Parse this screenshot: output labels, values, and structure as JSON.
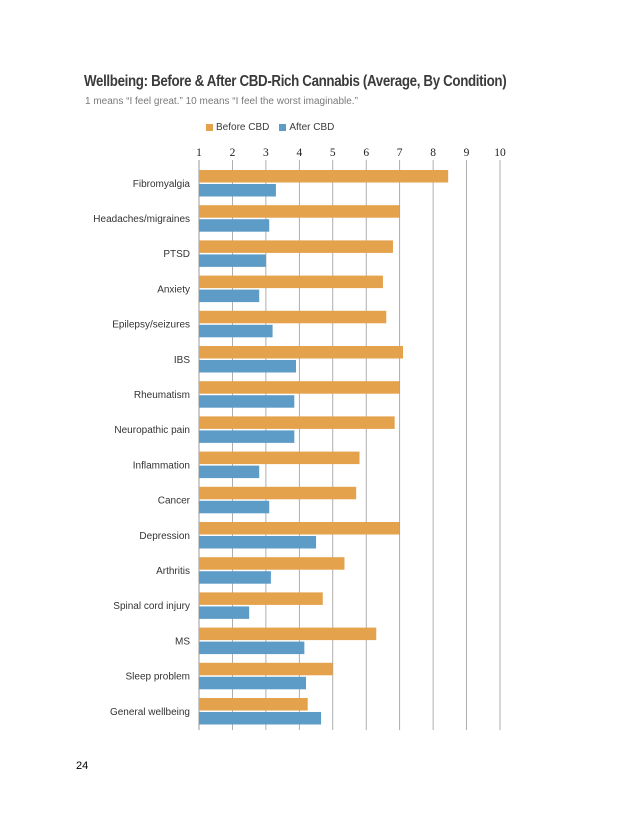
{
  "colors": {
    "before": "#e4a24c",
    "after": "#5e9cc8",
    "grid": "#9a9a9a"
  },
  "page_number": "24",
  "chart_data": {
    "type": "bar",
    "orientation": "horizontal",
    "title": "Wellbeing: Before & After CBD-Rich Cannabis (Average, By Condition)",
    "subtitle": "1 means “I feel great.” 10 means “I feel the worst imaginable.”",
    "xlabel": "",
    "ylabel": "",
    "xlim": [
      1,
      10
    ],
    "ticks": [
      1,
      2,
      3,
      4,
      5,
      6,
      7,
      8,
      9,
      10
    ],
    "grid": true,
    "legend_position": "top",
    "categories": [
      "Fibromyalgia",
      "Headaches/migraines",
      "PTSD",
      "Anxiety",
      "Epilepsy/seizures",
      "IBS",
      "Rheumatism",
      "Neuropathic pain",
      "Inflammation",
      "Cancer",
      "Depression",
      "Arthritis",
      "Spinal cord injury",
      "MS",
      "Sleep problem",
      "General wellbeing"
    ],
    "series": [
      {
        "name": "Before CBD",
        "color_key": "before",
        "values": [
          8.45,
          7.0,
          6.8,
          6.5,
          6.6,
          7.1,
          7.0,
          6.85,
          5.8,
          5.7,
          7.0,
          5.35,
          4.7,
          6.3,
          5.0,
          4.25
        ]
      },
      {
        "name": "After CBD",
        "color_key": "after",
        "values": [
          3.3,
          3.1,
          3.0,
          2.8,
          3.2,
          3.9,
          3.85,
          3.85,
          2.8,
          3.1,
          4.5,
          3.15,
          2.5,
          4.15,
          4.2,
          4.65
        ]
      }
    ]
  }
}
